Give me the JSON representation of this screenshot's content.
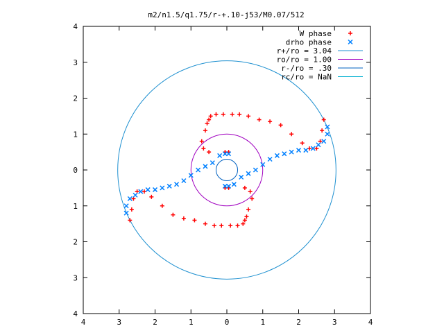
{
  "chart_data": {
    "type": "scatter",
    "title": "m2/n1.5/q1.75/r-+.10-j53/M0.07/512",
    "xlim": [
      -4,
      4
    ],
    "ylim": [
      -4,
      4
    ],
    "xticks": [
      -4,
      -3,
      -2,
      -1,
      0,
      1,
      2,
      3,
      4
    ],
    "yticks": [
      -4,
      -3,
      -2,
      -1,
      0,
      1,
      2,
      3,
      4
    ],
    "xtick_labels": [
      "4",
      "3",
      "2",
      "1",
      "0",
      "1",
      "2",
      "3",
      "4"
    ],
    "ytick_labels": [
      "4",
      "3",
      "2",
      "1",
      "0",
      "1",
      "2",
      "3",
      "4"
    ],
    "legend_position": "top-right",
    "legend": [
      {
        "label": "W phase",
        "marker": "+",
        "color": "#ff0000"
      },
      {
        "label": "drho phase",
        "marker": "x",
        "color": "#0080ff"
      },
      {
        "label": "r+/ro = 3.04",
        "line": true,
        "color": "#1e90d0"
      },
      {
        "label": "ro/ro = 1.00",
        "line": true,
        "color": "#a000c0"
      },
      {
        "label": "r-/ro = .30",
        "line": true,
        "color": "#0060c0"
      },
      {
        "label": "rc/ro = NaN",
        "line": true,
        "color": "#00b0d0"
      }
    ],
    "circles": [
      {
        "r": 3.04,
        "color": "#1e90d0"
      },
      {
        "r": 1.0,
        "color": "#a000c0"
      },
      {
        "r": 0.3,
        "color": "#0060c0"
      }
    ],
    "series": [
      {
        "name": "W phase",
        "color": "#ff0000",
        "x": [
          0.05,
          -0.05,
          -0.5,
          -0.65,
          -0.7,
          -0.6,
          -0.55,
          -0.5,
          -0.45,
          -0.3,
          -0.1,
          0.15,
          0.35,
          0.6,
          0.9,
          1.2,
          1.5,
          1.8,
          2.1,
          2.3,
          2.5,
          2.6,
          2.65,
          2.7,
          -0.05,
          0.05,
          0.5,
          0.65,
          0.7,
          0.6,
          0.55,
          0.5,
          0.45,
          0.3,
          0.1,
          -0.15,
          -0.35,
          -0.6,
          -0.9,
          -1.2,
          -1.5,
          -1.8,
          -2.1,
          -2.3,
          -2.5,
          -2.6,
          -2.65,
          -2.7
        ],
        "y": [
          0.5,
          0.5,
          0.5,
          0.6,
          0.8,
          1.1,
          1.3,
          1.4,
          1.5,
          1.55,
          1.55,
          1.55,
          1.55,
          1.5,
          1.4,
          1.35,
          1.25,
          1.0,
          0.75,
          0.6,
          0.6,
          0.8,
          1.1,
          1.4,
          -0.5,
          -0.5,
          -0.5,
          -0.6,
          -0.8,
          -1.1,
          -1.3,
          -1.4,
          -1.5,
          -1.55,
          -1.55,
          -1.55,
          -1.55,
          -1.5,
          -1.4,
          -1.35,
          -1.25,
          -1.0,
          -0.75,
          -0.6,
          -0.6,
          -0.8,
          -1.1,
          -1.4
        ]
      },
      {
        "name": "drho phase",
        "color": "#0080ff",
        "x": [
          0.05,
          -0.05,
          -0.2,
          -0.4,
          -0.6,
          -0.8,
          -1.0,
          -1.2,
          -1.4,
          -1.6,
          -1.8,
          -2.0,
          -2.2,
          -2.4,
          -2.55,
          -2.7,
          -2.8,
          -2.8,
          -0.05,
          0.05,
          0.2,
          0.4,
          0.6,
          0.8,
          1.0,
          1.2,
          1.4,
          1.6,
          1.8,
          2.0,
          2.2,
          2.4,
          2.55,
          2.7,
          2.8,
          2.8
        ],
        "y": [
          0.45,
          0.45,
          0.4,
          0.2,
          0.1,
          0.0,
          -0.15,
          -0.3,
          -0.4,
          -0.45,
          -0.5,
          -0.55,
          -0.55,
          -0.6,
          -0.7,
          -0.8,
          -1.0,
          -1.2,
          -0.45,
          -0.45,
          -0.4,
          -0.2,
          -0.1,
          0.0,
          0.15,
          0.3,
          0.4,
          0.45,
          0.5,
          0.55,
          0.55,
          0.6,
          0.7,
          0.8,
          1.0,
          1.2
        ]
      }
    ]
  }
}
